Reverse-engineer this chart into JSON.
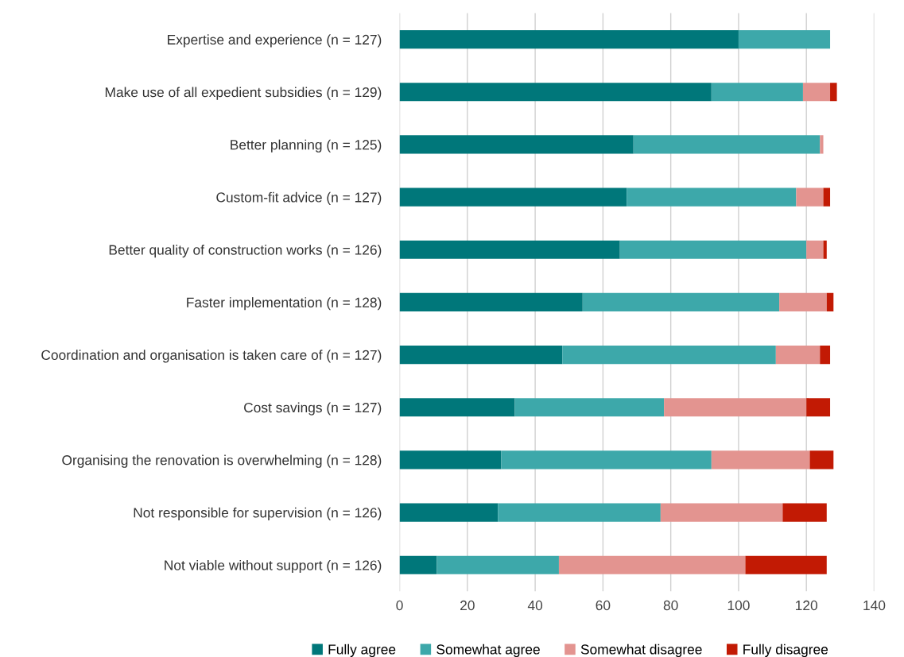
{
  "chart_data": {
    "type": "bar",
    "orientation": "horizontal",
    "stacked": true,
    "categories": [
      "Expertise and experience (n = 127)",
      "Make use of all expedient subsidies (n = 129)",
      "Better planning (n = 125)",
      "Custom-fit advice (n = 127)",
      "Better quality of construction works (n = 126)",
      "Faster implementation (n = 128)",
      "Coordination and organisation is taken care of (n = 127)",
      "Cost savings (n = 127)",
      "Organising the renovation is overwhelming (n = 128)",
      "Not responsible for supervision (n = 126)",
      "Not viable without support (n = 126)"
    ],
    "series": [
      {
        "name": "Fully agree",
        "color": "#00777a",
        "values": [
          100,
          92,
          69,
          67,
          65,
          54,
          48,
          34,
          30,
          29,
          11
        ]
      },
      {
        "name": "Somewhat agree",
        "color": "#3da8aa",
        "values": [
          27,
          27,
          55,
          50,
          55,
          58,
          63,
          44,
          62,
          48,
          36
        ]
      },
      {
        "name": "Somewhat disagree",
        "color": "#e39490",
        "values": [
          0,
          8,
          1,
          8,
          5,
          14,
          13,
          42,
          29,
          36,
          55
        ]
      },
      {
        "name": "Fully disagree",
        "color": "#c21a04",
        "values": [
          0,
          2,
          0,
          2,
          1,
          2,
          3,
          7,
          7,
          13,
          24
        ]
      }
    ],
    "xlim": [
      0,
      140
    ],
    "xticks": [
      0,
      20,
      40,
      60,
      80,
      100,
      120,
      140
    ],
    "grid": "x",
    "legend": "bottom"
  }
}
